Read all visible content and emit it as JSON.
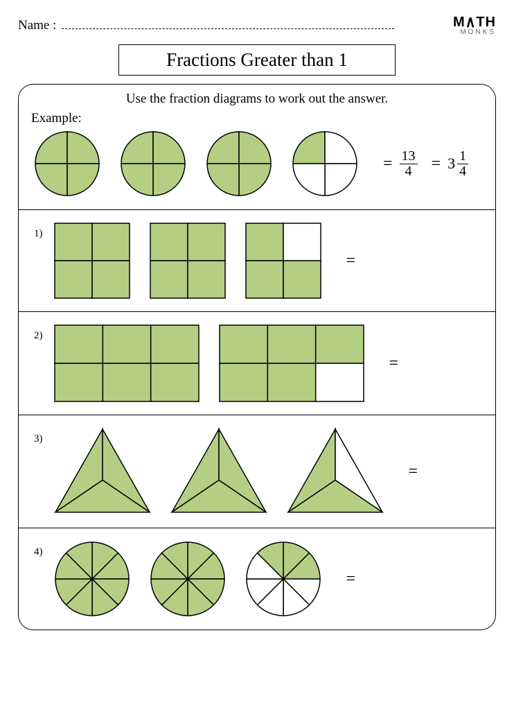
{
  "header": {
    "name_label": "Name :",
    "logo_top": "M∧TH",
    "logo_bottom": "MONKS"
  },
  "title": "Fractions Greater than 1",
  "instructions": "Use the fraction diagrams to work out the answer.",
  "example_label": "Example:",
  "colors": {
    "fill": "#b4cf84",
    "stroke": "#000000",
    "empty": "#ffffff"
  },
  "example": {
    "shape": "circle4",
    "copies": [
      {
        "filled": [
          1,
          1,
          1,
          1
        ]
      },
      {
        "filled": [
          1,
          1,
          1,
          1
        ]
      },
      {
        "filled": [
          1,
          1,
          1,
          1
        ]
      },
      {
        "filled": [
          1,
          0,
          0,
          0
        ]
      }
    ],
    "equals": "=",
    "improper": {
      "num": "13",
      "den": "4"
    },
    "mixed": {
      "whole": "3",
      "num": "1",
      "den": "4"
    }
  },
  "problems": [
    {
      "num": "1)",
      "shape": "square4",
      "copies": [
        {
          "filled": [
            1,
            1,
            1,
            1
          ]
        },
        {
          "filled": [
            1,
            1,
            1,
            1
          ]
        },
        {
          "filled": [
            1,
            0,
            1,
            1
          ]
        }
      ],
      "equals": "="
    },
    {
      "num": "2)",
      "shape": "rect6",
      "copies": [
        {
          "filled": [
            1,
            1,
            1,
            1,
            1,
            1
          ]
        },
        {
          "filled": [
            1,
            1,
            1,
            1,
            1,
            0
          ]
        }
      ],
      "equals": "="
    },
    {
      "num": "3)",
      "shape": "triangle3",
      "copies": [
        {
          "filled": [
            1,
            1,
            1
          ]
        },
        {
          "filled": [
            1,
            1,
            1
          ]
        },
        {
          "filled": [
            1,
            0,
            1
          ]
        }
      ],
      "equals": "="
    },
    {
      "num": "4)",
      "shape": "circle8",
      "copies": [
        {
          "filled": [
            1,
            1,
            1,
            1,
            1,
            1,
            1,
            1
          ]
        },
        {
          "filled": [
            1,
            1,
            1,
            1,
            1,
            1,
            1,
            1
          ]
        },
        {
          "filled": [
            1,
            1,
            0,
            0,
            0,
            0,
            0,
            1
          ]
        }
      ],
      "equals": "="
    }
  ]
}
